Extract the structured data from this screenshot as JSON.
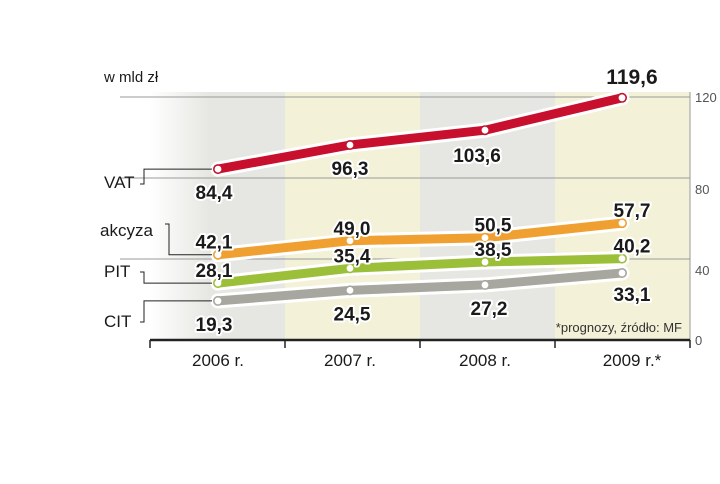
{
  "chart_data": {
    "type": "line",
    "unit_label": "w mld zł",
    "categories": [
      "2006 r.",
      "2007 r.",
      "2008 r.",
      "2009 r.*"
    ],
    "ylim": [
      0,
      120
    ],
    "yticks": [
      "0",
      "40",
      "80",
      "120"
    ],
    "series": [
      {
        "name": "VAT",
        "color": "#c8102e",
        "values": [
          84.4,
          96.3,
          103.6,
          119.6
        ],
        "labels": [
          "84,4",
          "96,3",
          "103,6",
          "119,6"
        ]
      },
      {
        "name": "akcyza",
        "color": "#f0a030",
        "values": [
          42.1,
          49.0,
          50.5,
          57.7
        ],
        "labels": [
          "42,1",
          "49,0",
          "50,5",
          "57,7"
        ]
      },
      {
        "name": "PIT",
        "color": "#9cbf3a",
        "values": [
          28.1,
          35.4,
          38.5,
          40.2
        ],
        "labels": [
          "28,1",
          "35,4",
          "38,5",
          "40,2"
        ]
      },
      {
        "name": "CIT",
        "color": "#a7a7a0",
        "values": [
          19.3,
          24.5,
          27.2,
          33.1
        ],
        "labels": [
          "19,3",
          "24,5",
          "27,2",
          "33,1"
        ]
      }
    ],
    "note": "*prognozy, źródło: MF",
    "colors": {
      "band_light": "#f3f1d8",
      "band_grey": "#e6e6e2",
      "axis": "#222222"
    }
  }
}
